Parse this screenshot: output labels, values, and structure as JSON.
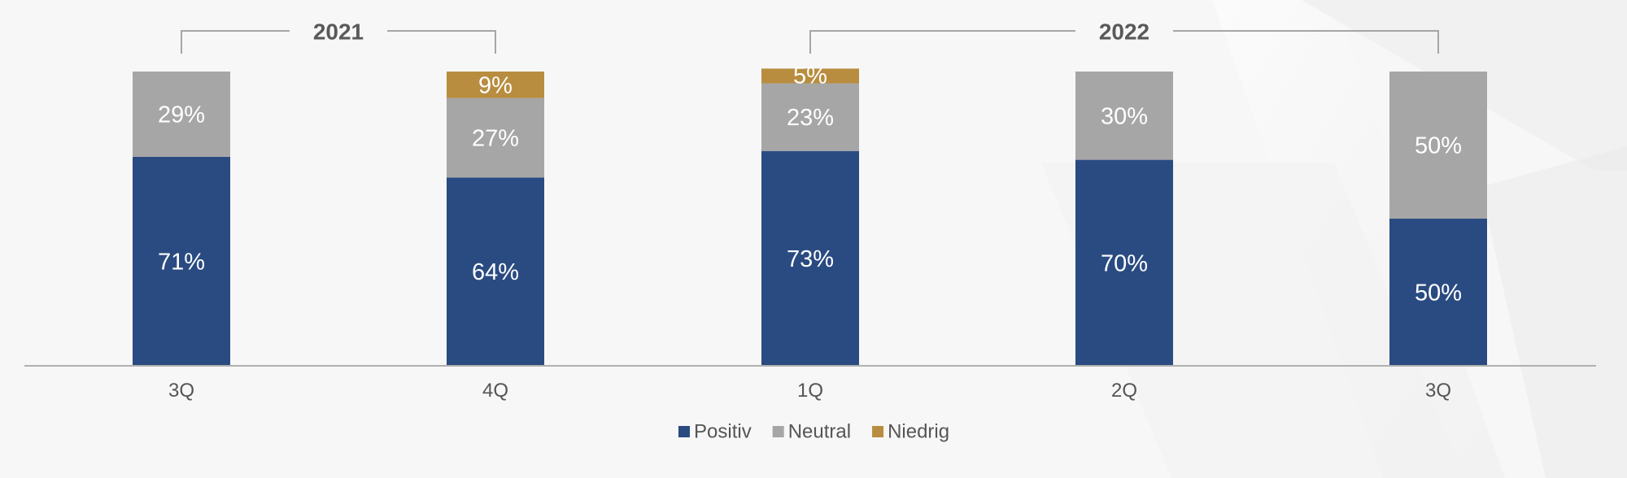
{
  "chart_data": {
    "type": "bar",
    "stacked": true,
    "categories": [
      "3Q",
      "4Q",
      "1Q",
      "2Q",
      "3Q"
    ],
    "category_groups": [
      {
        "label": "2021",
        "categories": [
          0,
          1
        ]
      },
      {
        "label": "2022",
        "categories": [
          2,
          4
        ]
      }
    ],
    "series": [
      {
        "name": "Positiv",
        "color": "#2a4b81",
        "values": [
          71,
          64,
          73,
          70,
          50
        ],
        "labels": [
          "71%",
          "64%",
          "73%",
          "70%",
          "50%"
        ]
      },
      {
        "name": "Neutral",
        "color": "#a6a6a6",
        "values": [
          29,
          27,
          23,
          30,
          50
        ],
        "labels": [
          "29%",
          "27%",
          "23%",
          "30%",
          "50%"
        ]
      },
      {
        "name": "Niedrig",
        "color": "#b88d3f",
        "values": [
          0,
          9,
          5,
          0,
          0
        ],
        "labels": [
          "",
          "9%",
          "5%",
          "",
          ""
        ]
      }
    ],
    "ylim": [
      0,
      100
    ],
    "legend_position": "bottom",
    "grid": false,
    "title": "",
    "xlabel": "",
    "ylabel": ""
  }
}
